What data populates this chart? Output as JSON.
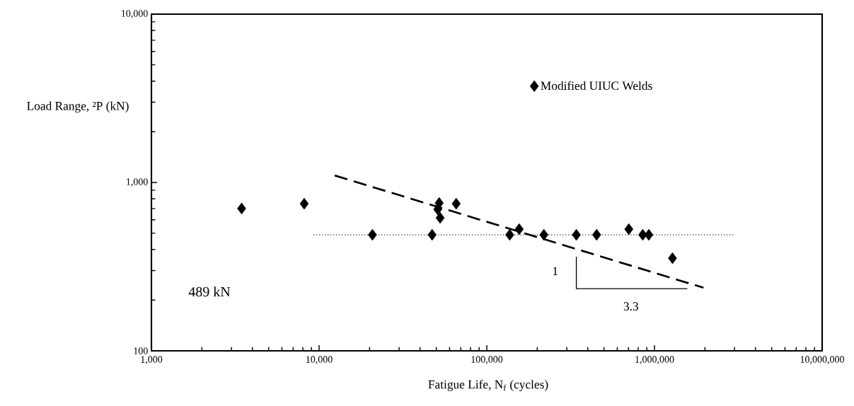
{
  "chart_data": {
    "type": "scatter",
    "xlabel": "Fatigue Life, N$_{f}$ (cycles)",
    "ylabel": "Load Range, ²P (kN)",
    "log": "xy",
    "marker": "diamond",
    "legend": "top",
    "xlim": [
      1000,
      10000000
    ],
    "ylim": [
      100,
      10000
    ],
    "xticks": [
      {
        "value": 1000,
        "label": "1,000"
      },
      {
        "value": 10000,
        "label": "10,000"
      },
      {
        "value": 100000,
        "label": "100,000"
      },
      {
        "value": 1000000,
        "label": "1,000,000"
      },
      {
        "value": 10000000,
        "label": "10,000,000"
      }
    ],
    "yticks": [
      100,
      {
        "value": 1000,
        "label": "1,000"
      },
      {
        "value": 10000,
        "label": "10,000"
      }
    ],
    "annotations": [
      "489 kN",
      "1",
      "3.3"
    ],
    "series": [
      {
        "name": "Modified UIUC Welds",
        "color": "#000000",
        "x": [
          3450,
          8150,
          20800,
          47200,
          52000,
          51000,
          52700,
          65700,
          137000,
          156000,
          219000,
          342000,
          452000,
          703000,
          851000,
          925000,
          1280000
        ],
        "values": [
          700,
          748,
          489,
          489,
          755,
          692,
          616,
          748,
          489,
          528,
          489,
          489,
          489,
          528,
          489,
          489,
          355
        ]
      },
      {
        "type": "line",
        "line_style": "dashed",
        "marker": "none",
        "color": "#000000",
        "x": [
          12400,
          1960000
        ],
        "values": [
          1100,
          237
        ]
      },
      {
        "type": "line",
        "line_style": "dotted",
        "marker": "none",
        "color": "#000000",
        "x": [
          9250,
          3000000
        ],
        "values": [
          489,
          489
        ]
      },
      {
        "type": "line",
        "line_style": "solid",
        "marker": "none",
        "color": "#000000",
        "x": [
          342000,
          342000,
          1570000
        ],
        "values": [
          362,
          234,
          234
        ]
      }
    ]
  }
}
